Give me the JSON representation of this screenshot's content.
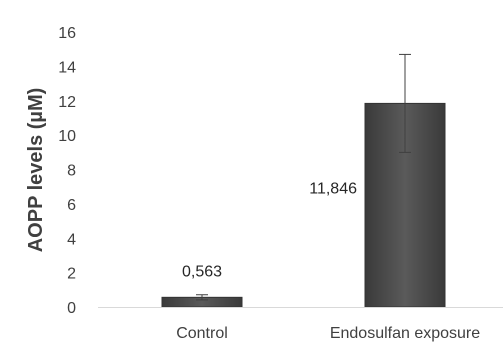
{
  "chart_data": {
    "type": "bar",
    "title": "",
    "xlabel": "",
    "ylabel": "AOPP levels (µM)",
    "categories": [
      "Control",
      "Endosulfan exposure"
    ],
    "values": [
      0.563,
      11.846
    ],
    "value_labels": [
      "0,563",
      "11,846"
    ],
    "error": [
      0.15,
      2.85
    ],
    "ylim": [
      0,
      16
    ],
    "yticks": [
      0,
      2,
      4,
      6,
      8,
      10,
      12,
      14,
      16
    ],
    "grid": false,
    "legend": "none",
    "bar_color": "#4d4d4d",
    "bar_edge_color": "#333333",
    "axis_color": "#d9d9d9",
    "text_color": "#404040"
  }
}
